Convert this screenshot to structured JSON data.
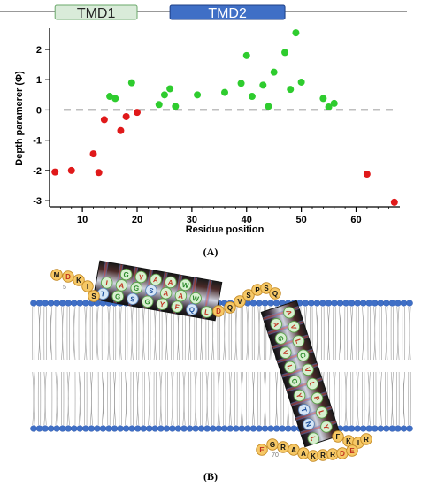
{
  "chart_data": {
    "type": "scatter",
    "title": "",
    "xlabel": "Residue position",
    "ylabel": "Depth paramerer (Φ)",
    "xlim": [
      4,
      68
    ],
    "ylim": [
      -3.2,
      2.7
    ],
    "xticks": [
      10,
      20,
      30,
      40,
      50,
      60
    ],
    "yticks": [
      -3,
      -2,
      -1,
      0,
      1,
      2
    ],
    "reference_line": {
      "y": 0,
      "style": "dashed"
    },
    "grid": false,
    "domains": [
      {
        "label": "TMD1",
        "start": 5,
        "end": 20,
        "color": "#d9ebd9",
        "border": "#6aa86a"
      },
      {
        "label": "TMD2",
        "start": 26,
        "end": 47,
        "color": "#3f6fc6",
        "border": "#1c3f86"
      }
    ],
    "series": [
      {
        "color": "#e0191a",
        "points": [
          [
            5,
            -2.05
          ],
          [
            8,
            -2.0
          ],
          [
            12,
            -1.45
          ],
          [
            13,
            -2.07
          ],
          [
            14,
            -0.32
          ],
          [
            17,
            -0.68
          ],
          [
            18,
            -0.22
          ],
          [
            20,
            -0.08
          ],
          [
            62,
            -2.12
          ],
          [
            67,
            -3.05
          ]
        ]
      },
      {
        "color": "#2ecc2e",
        "points": [
          [
            15,
            0.45
          ],
          [
            16,
            0.38
          ],
          [
            19,
            0.9
          ],
          [
            24,
            0.18
          ],
          [
            25,
            0.5
          ],
          [
            26,
            0.7
          ],
          [
            27,
            0.12
          ],
          [
            31,
            0.5
          ],
          [
            36,
            0.58
          ],
          [
            39,
            0.88
          ],
          [
            40,
            1.8
          ],
          [
            41,
            0.45
          ],
          [
            43,
            0.82
          ],
          [
            44,
            0.12
          ],
          [
            45,
            1.25
          ],
          [
            47,
            1.9
          ],
          [
            48,
            0.68
          ],
          [
            49,
            2.55
          ],
          [
            50,
            0.92
          ],
          [
            54,
            0.38
          ],
          [
            55,
            0.1
          ],
          [
            56,
            0.22
          ]
        ]
      }
    ]
  },
  "panel_a_label": "(A)",
  "panel_b_label": "(B)",
  "model": {
    "helix1": {
      "top": [
        "G",
        "Y",
        "A",
        "A",
        "W"
      ],
      "middle": [
        "I",
        "A",
        "G",
        "S",
        "A",
        "A",
        "W"
      ],
      "bottom": [
        "T",
        "G",
        "S",
        "G",
        "Y",
        "F",
        "Q",
        "L"
      ]
    },
    "n_term": [
      "M",
      "D",
      "K",
      "I",
      "S"
    ],
    "n_term_number": "5",
    "linker": [
      "D",
      "Q",
      "V",
      "S",
      "P",
      "S",
      "Q"
    ],
    "helix2": {
      "left": [
        "A",
        "V",
        "L",
        "G",
        "V",
        "L",
        "F",
        "L",
        "Y"
      ],
      "right": [
        "A",
        "G",
        "V",
        "L",
        "G",
        "Y",
        "T",
        "N",
        "L"
      ]
    },
    "c_term_upper": [
      "F",
      "K",
      "I",
      "R"
    ],
    "c_term_lower": [
      "E",
      "G",
      "R",
      "A",
      "A",
      "K",
      "R",
      "R",
      "D",
      "E"
    ],
    "c_term_number": "70"
  }
}
